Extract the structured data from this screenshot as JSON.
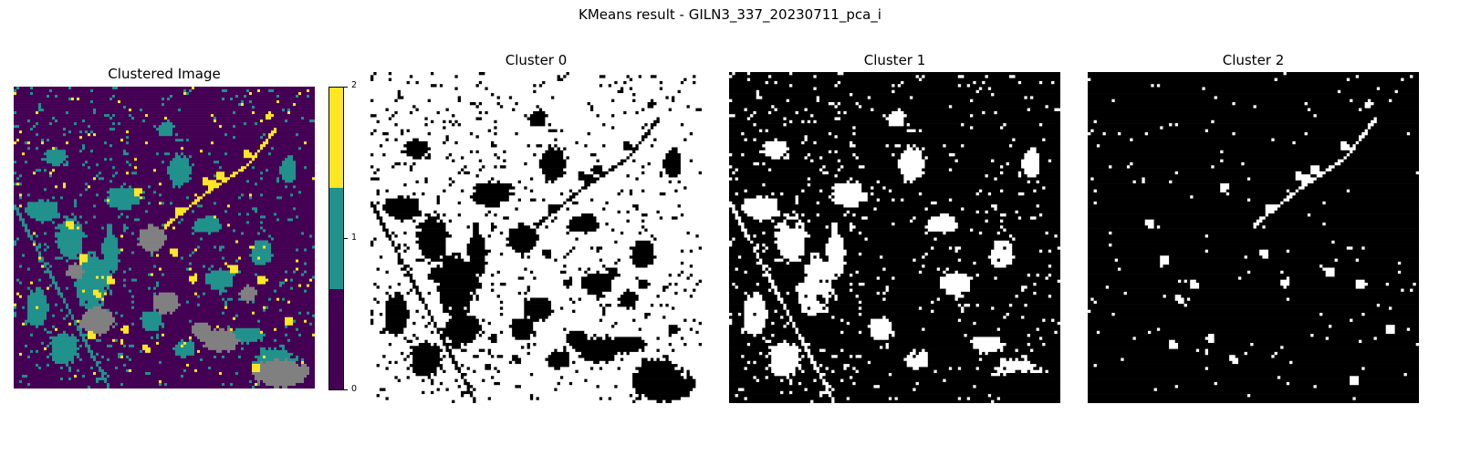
{
  "chart_data": [
    {
      "type": "heatmap",
      "title": "Clustered Image",
      "colorbar": {
        "ticks": [
          "0",
          "1",
          "2"
        ],
        "levels": [
          0,
          1,
          2
        ],
        "colors": [
          "#440154",
          "#21918c",
          "#fde725"
        ]
      },
      "nodata_color": "#808080"
    },
    {
      "type": "heatmap",
      "title": "Cluster 0",
      "cluster": 0,
      "colormap": "gray"
    },
    {
      "type": "heatmap",
      "title": "Cluster 1",
      "cluster": 1,
      "colormap": "gray"
    },
    {
      "type": "heatmap",
      "title": "Cluster 2",
      "cluster": 2,
      "colormap": "gray"
    }
  ],
  "suptitle": "KMeans result - GILN3_337_20230711_pca_i"
}
